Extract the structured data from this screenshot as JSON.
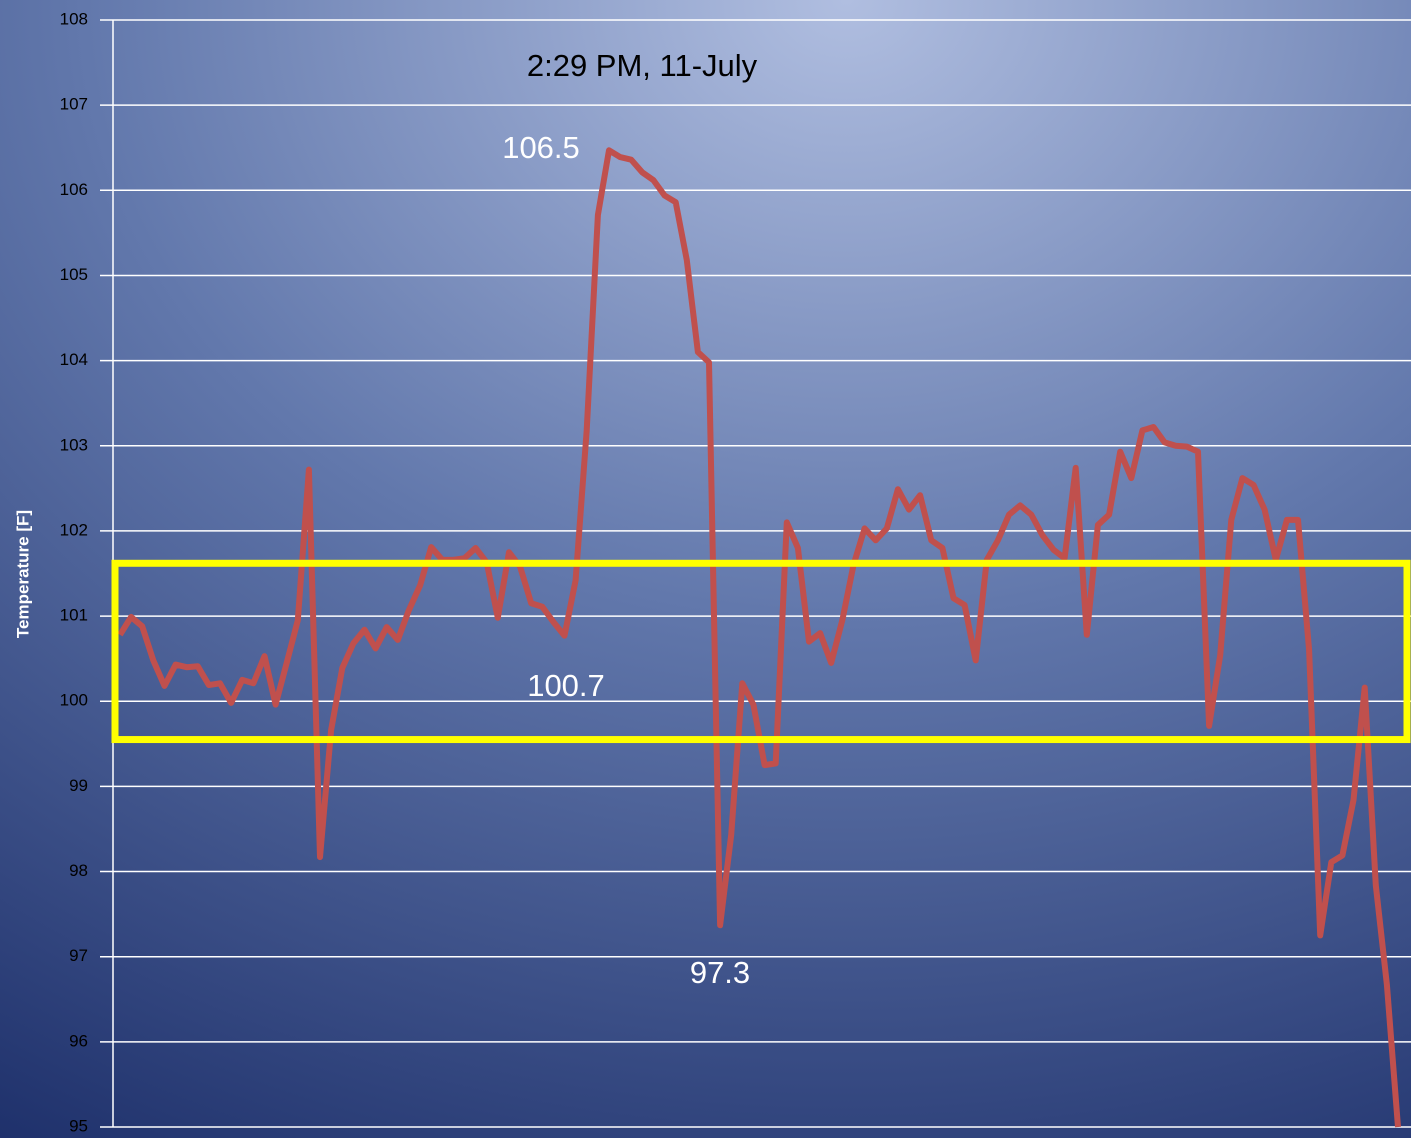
{
  "chart_data": {
    "type": "line",
    "title": "2:29 PM, 11-July",
    "y_label": "Temperature [F]",
    "ylim": [
      95,
      108
    ],
    "yticks": [
      95,
      96,
      97,
      98,
      99,
      100,
      101,
      102,
      103,
      104,
      105,
      106,
      107,
      108
    ],
    "grid": true,
    "color": "#c0504d",
    "values": [
      100.78,
      100.99,
      100.88,
      100.48,
      100.18,
      100.43,
      100.4,
      100.41,
      100.19,
      100.21,
      99.98,
      100.25,
      100.21,
      100.53,
      99.96,
      100.45,
      100.95,
      102.72,
      98.17,
      99.66,
      100.39,
      100.68,
      100.84,
      100.62,
      100.87,
      100.72,
      101.07,
      101.36,
      101.81,
      101.66,
      101.66,
      101.68,
      101.8,
      101.63,
      100.98,
      101.75,
      101.58,
      101.15,
      101.11,
      100.93,
      100.77,
      101.42,
      103.18,
      105.71,
      106.47,
      106.39,
      106.36,
      106.21,
      106.12,
      105.94,
      105.86,
      105.18,
      104.1,
      103.98,
      97.37,
      98.43,
      100.21,
      99.96,
      99.25,
      99.27,
      102.1,
      101.8,
      100.7,
      100.8,
      100.45,
      100.95,
      101.6,
      102.03,
      101.89,
      102.03,
      102.49,
      102.25,
      102.42,
      101.89,
      101.8,
      101.21,
      101.13,
      100.48,
      101.66,
      101.89,
      102.19,
      102.3,
      102.19,
      101.95,
      101.78,
      101.68,
      102.74,
      100.78,
      102.07,
      102.19,
      102.93,
      102.62,
      103.18,
      103.22,
      103.04,
      103.0,
      102.99,
      102.93,
      99.71,
      100.54,
      102.13,
      102.62,
      102.54,
      102.25,
      101.66,
      102.13,
      102.13,
      100.6,
      97.25,
      98.11,
      98.19,
      98.84,
      100.16,
      97.84,
      96.67,
      95.0
    ],
    "highlight": {
      "ymin": 99.55,
      "ymax": 101.62,
      "color": "#ffff00"
    },
    "annotations": [
      "106.5",
      "100.7",
      "97.3"
    ]
  }
}
